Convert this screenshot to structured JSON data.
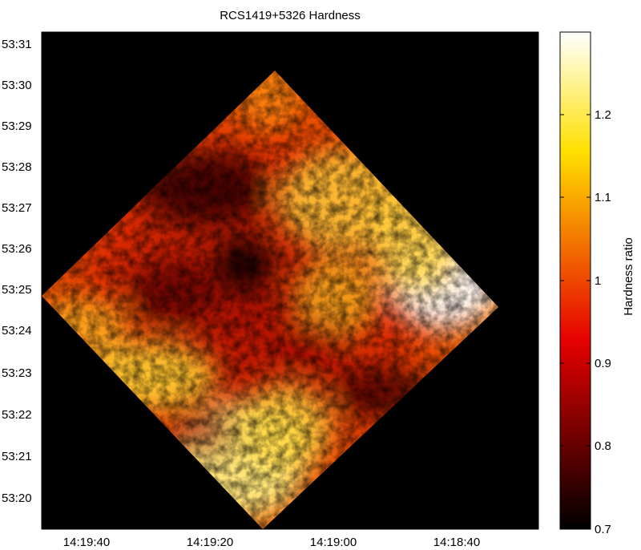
{
  "chart_data": {
    "type": "heatmap",
    "title": "RCS1419+5326 Hardness",
    "xlabel": "",
    "ylabel": "",
    "x_ticks": [
      "14:19:40",
      "14:19:20",
      "14:19:00",
      "14:18:40"
    ],
    "y_ticks": [
      "53:31",
      "53:30",
      "53:29",
      "53:28",
      "53:27",
      "53:26",
      "53:25",
      "53:24",
      "53:23",
      "53:22",
      "53:21",
      "53:20"
    ],
    "colorbar": {
      "label": "Hardness ratio",
      "range": [
        0.7,
        1.3
      ],
      "ticks": [
        "1.2",
        "1.1",
        "1",
        "0.9",
        "0.8",
        "0.7"
      ],
      "colormap": "hot"
    },
    "background_color": "#000000",
    "grid": false,
    "features": {
      "soft_core": "near 14:19:18, 53:25.5",
      "hard_region": "near 14:18:52, 53:25"
    }
  }
}
